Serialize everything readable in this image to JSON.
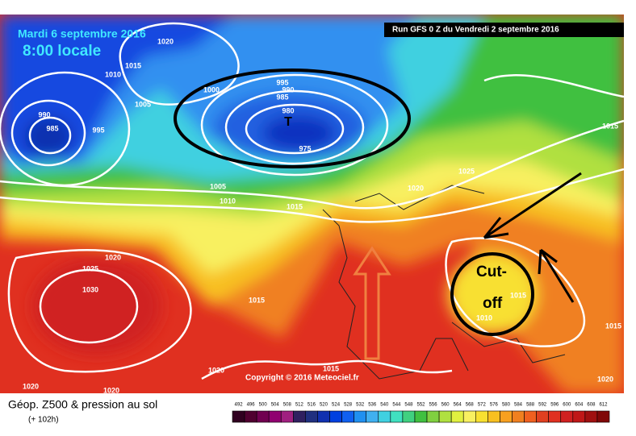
{
  "header": {
    "date": "Mardi 6 septembre 2016",
    "time": "8:00 locale",
    "run": "Run GFS 0 Z du Vendredi 2 septembre 2016"
  },
  "map": {
    "pressure_labels": [
      1020,
      1015,
      1010,
      1005,
      990,
      985,
      995,
      1000,
      995,
      990,
      985,
      980,
      975,
      1005,
      1010,
      1015,
      1020,
      1025,
      1015,
      1020,
      1025,
      1030,
      1015,
      1015,
      1010,
      1015,
      1015,
      1020,
      1020,
      1020,
      1020
    ],
    "low_marker": "T",
    "copyright": "Copyright © 2016 Meteociel.fr",
    "annotation": [
      "Cut-",
      "off"
    ]
  },
  "footer": {
    "title": "Géop. Z500 & pression au sol",
    "lead": "(+ 102h)",
    "scale": {
      "values": [
        492,
        496,
        500,
        504,
        508,
        512,
        516,
        520,
        524,
        528,
        532,
        536,
        540,
        544,
        548,
        552,
        556,
        560,
        564,
        568,
        572,
        576,
        580,
        584,
        588,
        592,
        596,
        600,
        604,
        608,
        612
      ],
      "colors": [
        "#300020",
        "#500030",
        "#700050",
        "#900070",
        "#a02080",
        "#302060",
        "#203080",
        "#1030b0",
        "#0040e0",
        "#1060f0",
        "#2090f0",
        "#40b0f0",
        "#40d0e0",
        "#40e0c0",
        "#40d080",
        "#40c040",
        "#80d040",
        "#b0e040",
        "#e0f040",
        "#f8f060",
        "#f8e030",
        "#f8c020",
        "#f8a020",
        "#f08020",
        "#f06020",
        "#e04020",
        "#e03020",
        "#d02020",
        "#c01818",
        "#a01010",
        "#800808"
      ]
    }
  }
}
